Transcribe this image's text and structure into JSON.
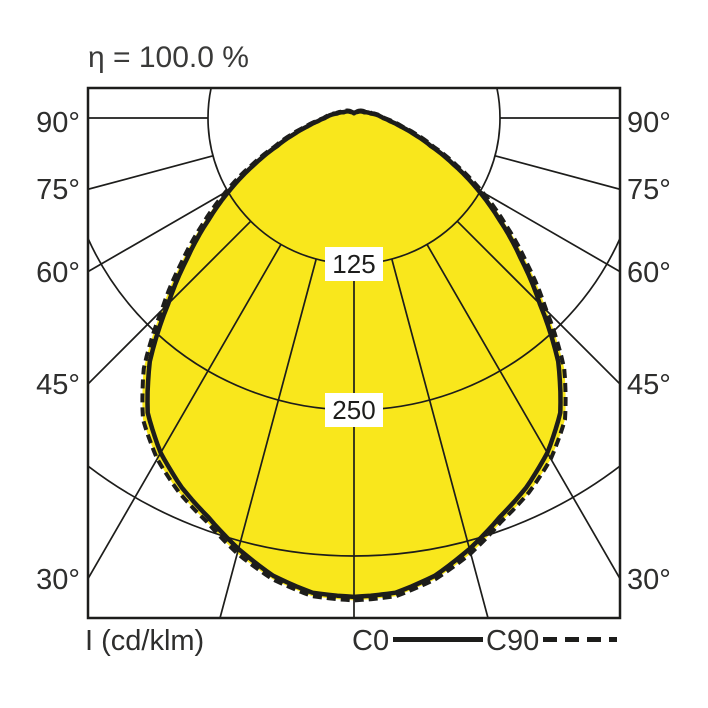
{
  "title": "η = 100.0 %",
  "colors": {
    "fill_yellow": "#F9E71C",
    "line_black": "#1D1D1B",
    "text_dark": "#3A3A39",
    "label_box_white": "#FFFFFF"
  },
  "angle_labels": {
    "left": [
      "90°",
      "75°",
      "60°",
      "45°",
      "30°"
    ],
    "right": [
      "90°",
      "75°",
      "60°",
      "45°",
      "30°"
    ]
  },
  "ring_labels": [
    "125",
    "250"
  ],
  "legend": {
    "axis_unit": "I (cd/klm)",
    "c0_label": "C0",
    "c90_label": "C90"
  },
  "chart_data": {
    "type": "polar",
    "subtype": "luminous-intensity-distribution",
    "title": "η = 100.0 %",
    "unit": "cd/klm",
    "angle_axis": {
      "zero_direction": "down",
      "tick_step_deg": 15,
      "labeled_ticks_deg": [
        90,
        75,
        60,
        45,
        30
      ],
      "symmetric": true
    },
    "radial_axis": {
      "ticks": [
        125,
        250,
        375
      ],
      "labeled_ticks": [
        125,
        250
      ]
    },
    "legend_position": "bottom",
    "grid": true,
    "series": [
      {
        "name": "C0",
        "style": "solid",
        "angles_deg": [
          0,
          5,
          10,
          15,
          20,
          25,
          30,
          35,
          40,
          45,
          50,
          55,
          60,
          65,
          70,
          75,
          80,
          85,
          90,
          105,
          120,
          135,
          150,
          165,
          180
        ],
        "values": [
          410,
          408,
          398,
          382,
          364,
          349,
          331,
          308,
          272,
          225,
          186,
          152,
          122,
          94,
          70,
          53,
          40,
          31,
          25,
          15,
          10,
          8,
          6,
          5,
          4
        ]
      },
      {
        "name": "C90",
        "style": "dashed",
        "angles_deg": [
          0,
          5,
          10,
          15,
          20,
          25,
          30,
          35,
          40,
          45,
          50,
          55,
          60,
          65,
          70,
          75,
          80,
          85,
          90,
          105,
          120,
          135,
          150,
          165,
          180
        ],
        "values": [
          413,
          411,
          401,
          386,
          368,
          354,
          337,
          315,
          280,
          233,
          193,
          158,
          127,
          98,
          73,
          56,
          42,
          33,
          26,
          16,
          11,
          9,
          7,
          5,
          4
        ]
      }
    ]
  }
}
